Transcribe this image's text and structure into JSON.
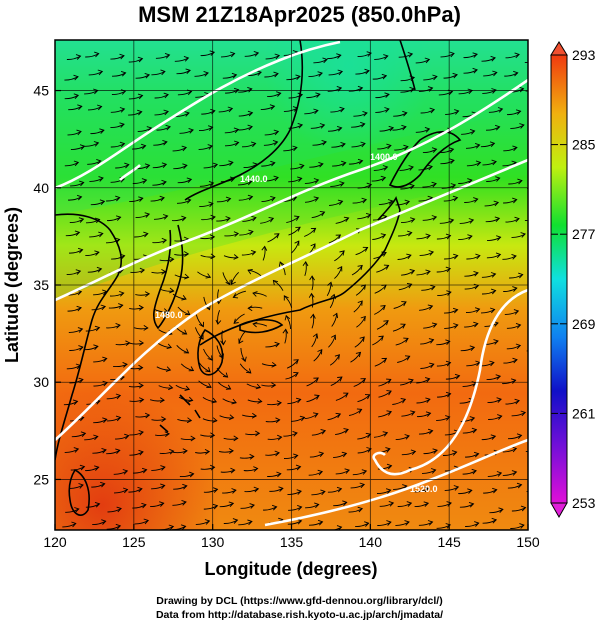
{
  "title": "MSM 21Z18Apr2025 (850.0hPa)",
  "map": {
    "x_axis_label": "Longitude (degrees)",
    "y_axis_label": "Latitude  (degrees)",
    "lon_range": [
      120,
      150
    ],
    "lat_range": [
      22.4,
      47.6
    ],
    "lon_ticks": [
      "120",
      "125",
      "130",
      "135",
      "140",
      "145",
      "150"
    ],
    "lat_ticks": [
      "25",
      "30",
      "35",
      "40",
      "45"
    ],
    "graticule": true,
    "contour_labels": [
      "1400.0",
      "1440.0",
      "1480.0",
      "1520.0"
    ]
  },
  "colorbar": {
    "ticks": [
      "293",
      "285",
      "277",
      "269",
      "261",
      "253"
    ],
    "min": 253,
    "max": 293,
    "colors": [
      "#e010e0",
      "#1010c8",
      "#1080f0",
      "#10e0e0",
      "#10e010",
      "#d0f010",
      "#f0c010",
      "#f05010"
    ]
  },
  "credits": {
    "line1": "Drawing by DCL (https://www.gfd-dennou.org/library/dcl/)",
    "line2": "Data from http://database.rish.kyoto-u.ac.jp/arch/jmadata/"
  }
}
